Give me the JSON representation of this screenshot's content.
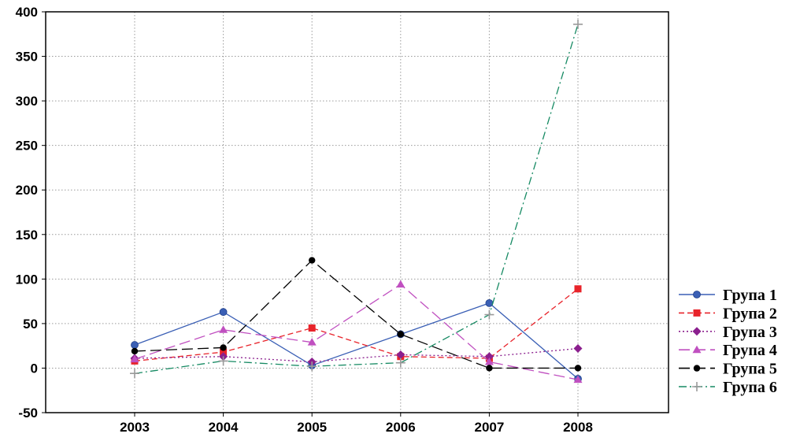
{
  "chart_data": {
    "type": "line",
    "title": "",
    "xlabel": "",
    "ylabel": "",
    "categories": [
      "2003",
      "2004",
      "2005",
      "2006",
      "2007",
      "2008"
    ],
    "ylim": [
      -50,
      400
    ],
    "yticks": [
      -50,
      0,
      50,
      100,
      150,
      200,
      250,
      300,
      350,
      400
    ],
    "grid": true,
    "legend_position": "bottom-right",
    "series": [
      {
        "name": "Група 1",
        "values": [
          26,
          63,
          3,
          38,
          73,
          -12
        ],
        "color": "#3a5fb5",
        "marker": "circle",
        "dash": "solid"
      },
      {
        "name": "Група 2",
        "values": [
          8,
          18,
          45,
          13,
          11,
          89
        ],
        "color": "#e8232a",
        "marker": "square",
        "dash": "dashed"
      },
      {
        "name": "Група 3",
        "values": [
          11,
          13,
          7,
          15,
          13,
          22
        ],
        "color": "#8b1f8e",
        "marker": "diamond",
        "dash": "dotted"
      },
      {
        "name": "Група 4",
        "values": [
          10,
          43,
          29,
          94,
          7,
          -13
        ],
        "color": "#c050c0",
        "marker": "triangle",
        "dash": "longdash"
      },
      {
        "name": "Група 5",
        "values": [
          19,
          23,
          121,
          38,
          0,
          0
        ],
        "color": "#000000",
        "marker": "circle-small",
        "dash": "longdash"
      },
      {
        "name": "Група 6",
        "values": [
          -6,
          8,
          2,
          6,
          60,
          386
        ],
        "color": "#168a63",
        "marker": "plus",
        "dash": "dashdot"
      }
    ]
  }
}
